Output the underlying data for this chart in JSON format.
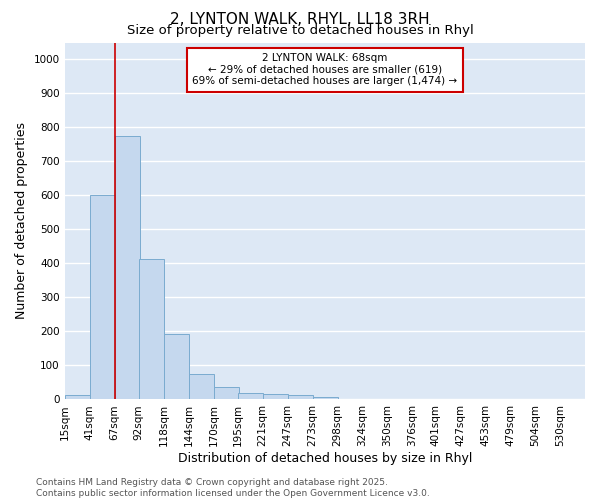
{
  "title1": "2, LYNTON WALK, RHYL, LL18 3RH",
  "title2": "Size of property relative to detached houses in Rhyl",
  "xlabel": "Distribution of detached houses by size in Rhyl",
  "ylabel": "Number of detached properties",
  "bin_labels": [
    "15sqm",
    "41sqm",
    "67sqm",
    "92sqm",
    "118sqm",
    "144sqm",
    "170sqm",
    "195sqm",
    "221sqm",
    "247sqm",
    "273sqm",
    "298sqm",
    "324sqm",
    "350sqm",
    "376sqm",
    "401sqm",
    "427sqm",
    "453sqm",
    "479sqm",
    "504sqm",
    "530sqm"
  ],
  "bin_edges": [
    15,
    41,
    67,
    92,
    118,
    144,
    170,
    195,
    221,
    247,
    273,
    298,
    324,
    350,
    376,
    401,
    427,
    453,
    479,
    504,
    530
  ],
  "bar_heights": [
    13,
    601,
    775,
    413,
    193,
    75,
    37,
    18,
    15,
    12,
    7,
    0,
    0,
    0,
    0,
    0,
    0,
    0,
    0,
    0
  ],
  "bar_color": "#c5d8ee",
  "bar_edge_color": "#7aabcf",
  "red_line_x": 67,
  "annotation_line1": "2 LYNTON WALK: 68sqm",
  "annotation_line2": "← 29% of detached houses are smaller (619)",
  "annotation_line3": "69% of semi-detached houses are larger (1,474) →",
  "annotation_box_color": "#ffffff",
  "annotation_box_edge_color": "#cc0000",
  "ylim": [
    0,
    1050
  ],
  "yticks": [
    0,
    100,
    200,
    300,
    400,
    500,
    600,
    700,
    800,
    900,
    1000
  ],
  "background_color": "#dde8f5",
  "grid_color": "#ffffff",
  "footnote": "Contains HM Land Registry data © Crown copyright and database right 2025.\nContains public sector information licensed under the Open Government Licence v3.0.",
  "title_fontsize": 11,
  "subtitle_fontsize": 9.5,
  "axis_label_fontsize": 9,
  "tick_fontsize": 7.5,
  "footnote_fontsize": 6.5
}
